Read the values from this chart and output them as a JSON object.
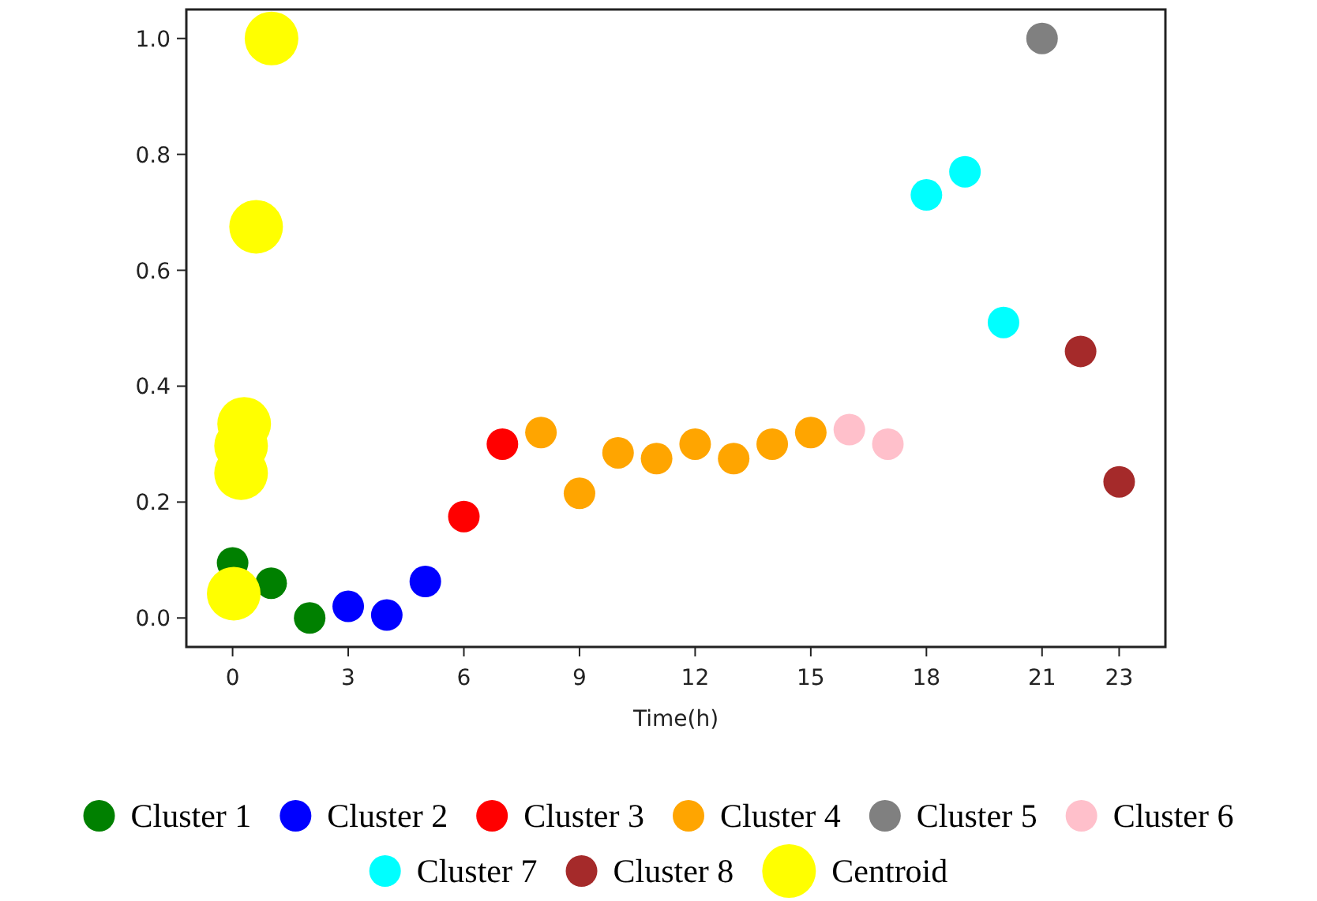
{
  "chart_data": {
    "type": "scatter",
    "xlabel": "Time(h)",
    "xlim": [
      -1.2,
      24.2
    ],
    "ylim": [
      -0.05,
      1.05
    ],
    "xticks": [
      0,
      3,
      6,
      9,
      12,
      15,
      18,
      21,
      23
    ],
    "yticks": [
      {
        "value": 0,
        "label": "0.0"
      },
      {
        "value": 0.2,
        "label": "0.2"
      },
      {
        "value": 0.4,
        "label": "0.4"
      },
      {
        "value": 0.6,
        "label": "0.6"
      },
      {
        "value": 0.8,
        "label": "0.8"
      },
      {
        "value": 1,
        "label": "1.0"
      }
    ],
    "grid": false,
    "legend": "bottom",
    "marker": "circle",
    "series": [
      {
        "name": "Cluster 1",
        "color": "#008000",
        "x": [
          0,
          1,
          2
        ],
        "values": [
          0.095,
          0.06,
          0.0
        ]
      },
      {
        "name": "Cluster 2",
        "color": "#0000ff",
        "x": [
          3,
          4,
          5
        ],
        "values": [
          0.02,
          0.005,
          0.063
        ]
      },
      {
        "name": "Cluster 3",
        "color": "#ff0000",
        "x": [
          6,
          7
        ],
        "values": [
          0.175,
          0.3
        ]
      },
      {
        "name": "Cluster 4",
        "color": "#ffa500",
        "x": [
          8,
          9,
          10,
          11,
          12,
          13,
          14,
          15
        ],
        "values": [
          0.32,
          0.215,
          0.285,
          0.275,
          0.3,
          0.275,
          0.3,
          0.32
        ]
      },
      {
        "name": "Cluster 5",
        "color": "#808080",
        "x": [
          21
        ],
        "values": [
          1.0
        ]
      },
      {
        "name": "Cluster 6",
        "color": "#ffc0cb",
        "x": [
          16,
          17
        ],
        "values": [
          0.325,
          0.3
        ]
      },
      {
        "name": "Cluster 7",
        "color": "#00ffff",
        "x": [
          18,
          19,
          20
        ],
        "values": [
          0.73,
          0.77,
          0.51
        ]
      },
      {
        "name": "Cluster 8",
        "color": "#a52a2a",
        "x": [
          22,
          23
        ],
        "values": [
          0.46,
          0.235
        ]
      },
      {
        "name": "Centroid",
        "color": "#ffff00",
        "x": [
          0.03,
          0.22,
          0.3,
          0.61,
          1.01,
          0.22
        ],
        "values": [
          0.042,
          0.25,
          0.335,
          0.675,
          1.0,
          0.297
        ]
      }
    ]
  }
}
